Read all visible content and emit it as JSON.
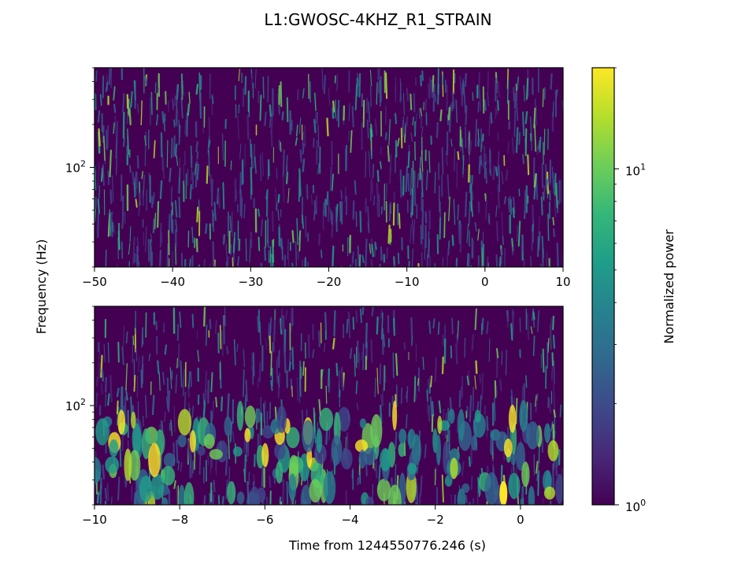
{
  "chart_data": [
    {
      "type": "heatmap",
      "title": "L1:GWOSC-4KHZ_R1_STRAIN",
      "xlabel": "",
      "ylabel": "Frequency (Hz)",
      "xlim": [
        -50,
        10
      ],
      "x_ticks": [
        -50,
        -40,
        -30,
        -20,
        -10,
        0,
        10
      ],
      "x_tick_labels": [
        "−50",
        "−40",
        "−30",
        "−20",
        "−10",
        "0",
        "10"
      ],
      "yscale": "log",
      "ylim": [
        20,
        500
      ],
      "y_major_ticks": [
        100
      ],
      "y_major_tick_labels": [
        "10",
        "2"
      ],
      "y_minor_ticks": [
        20,
        30,
        40,
        50,
        60,
        70,
        80,
        90,
        200,
        300,
        400,
        500
      ],
      "colormap": "viridis",
      "description_of_content": "broadband noise streaks, no prominent signal"
    },
    {
      "type": "heatmap",
      "xlabel": "Time from 1244550776.246 (s)",
      "ylabel": "Frequency (Hz)",
      "xlim": [
        -10,
        1
      ],
      "x_ticks": [
        -10,
        -8,
        -6,
        -4,
        -2,
        0
      ],
      "x_tick_labels": [
        "−10",
        "−8",
        "−6",
        "−4",
        "−2",
        "0"
      ],
      "yscale": "log",
      "ylim": [
        20,
        500
      ],
      "y_major_ticks": [
        100
      ],
      "y_major_tick_labels": [
        "10",
        "2"
      ],
      "y_minor_ticks": [
        20,
        30,
        40,
        50,
        60,
        70,
        80,
        90,
        200,
        300,
        400,
        500
      ],
      "colormap": "viridis",
      "description_of_content": "noise with low-frequency blobs; brightest near t=-0.4 s around 20-30 Hz"
    }
  ],
  "colorbar": {
    "label": "Normalized power",
    "scale": "log",
    "range": [
      1,
      20
    ],
    "major_ticks": [
      1,
      10
    ],
    "major_tick_bases": [
      "10",
      "10"
    ],
    "major_tick_exps": [
      "0",
      "1"
    ],
    "minor_ticks": [
      2,
      3,
      4,
      5,
      6,
      7,
      8,
      9,
      20
    ],
    "colors": [
      "#440154",
      "#482878",
      "#3e4989",
      "#31688e",
      "#26828e",
      "#1f9e89",
      "#35b779",
      "#6ece58",
      "#b5de2b",
      "#fde725"
    ]
  }
}
